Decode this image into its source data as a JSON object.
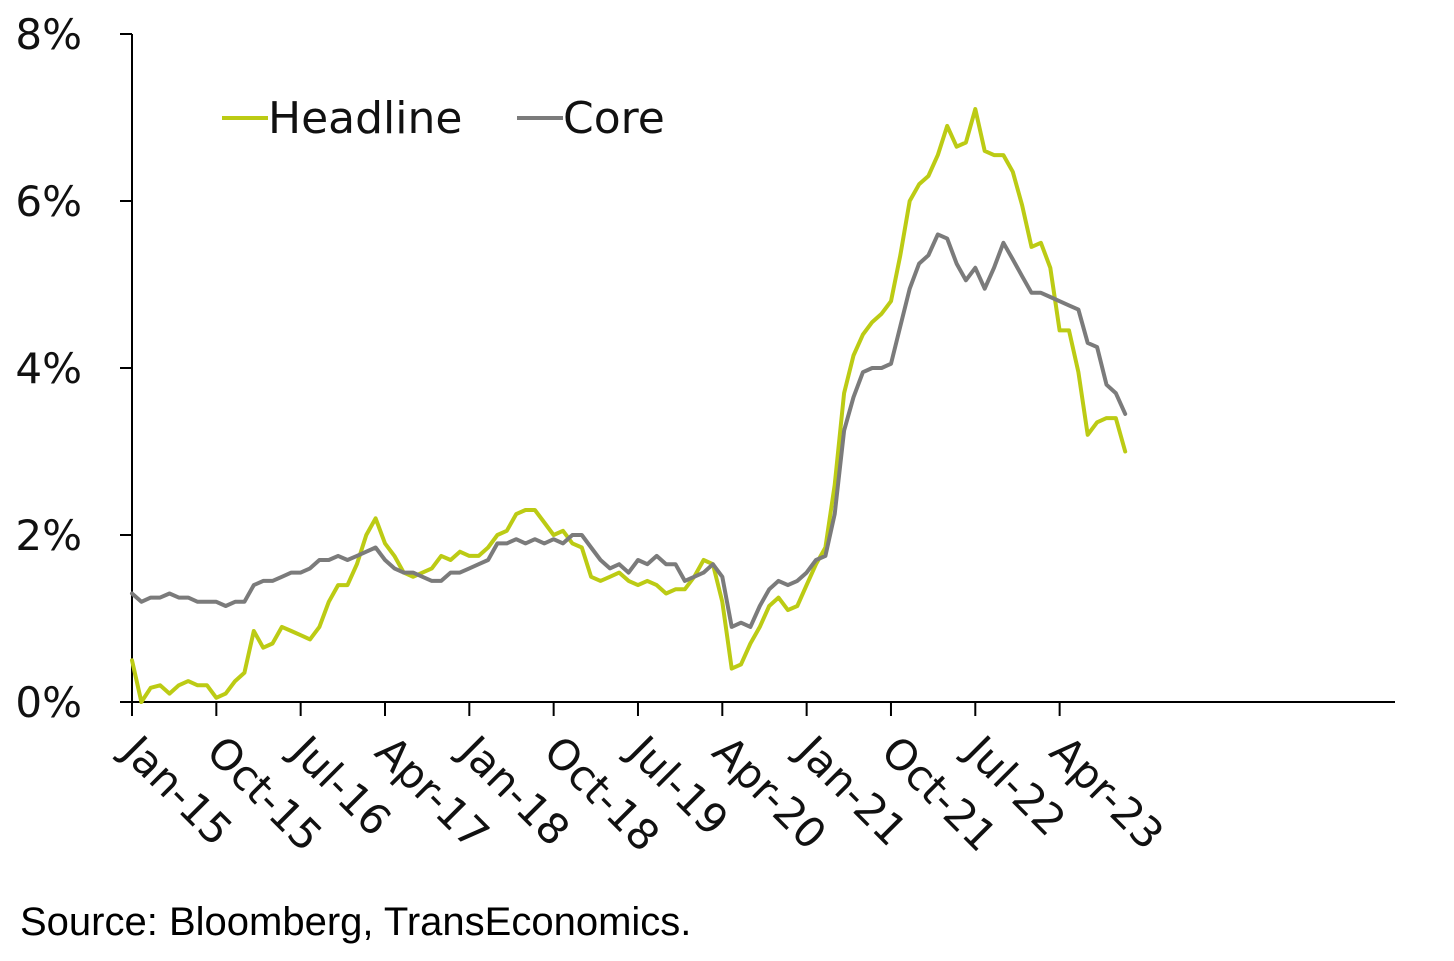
{
  "source_note": "Source: Bloomberg, TransEconomics.",
  "colors": {
    "headline": "#bccb14",
    "core": "#7b7b7b",
    "axis": "#000000"
  },
  "chart_data": {
    "type": "line",
    "title": "",
    "xlabel": "",
    "ylabel": "",
    "x_start": "Jan-15",
    "x_step": "1 month",
    "ylim": [
      0,
      8
    ],
    "y_ticks": [
      0,
      2,
      4,
      6,
      8
    ],
    "y_tick_labels": [
      "0%",
      "2%",
      "4%",
      "6%",
      "8%"
    ],
    "x_tick_labels": [
      "Jan-15",
      "Oct-15",
      "Jul-16",
      "Apr-17",
      "Jan-18",
      "Oct-18",
      "Jul-19",
      "Apr-20",
      "Jan-21",
      "Oct-21",
      "Jul-22",
      "Apr-23"
    ],
    "legend_position": "top-left",
    "grid": false,
    "series": [
      {
        "name": "Headline",
        "values": [
          0.5,
          0.0,
          0.17,
          0.2,
          0.1,
          0.2,
          0.25,
          0.2,
          0.2,
          0.05,
          0.1,
          0.25,
          0.35,
          0.85,
          0.65,
          0.7,
          0.9,
          0.85,
          0.8,
          0.75,
          0.9,
          1.2,
          1.4,
          1.4,
          1.65,
          2.0,
          2.2,
          1.9,
          1.75,
          1.55,
          1.5,
          1.55,
          1.6,
          1.75,
          1.7,
          1.8,
          1.75,
          1.75,
          1.85,
          2.0,
          2.05,
          2.25,
          2.3,
          2.3,
          2.15,
          2.0,
          2.05,
          1.9,
          1.85,
          1.5,
          1.45,
          1.5,
          1.55,
          1.45,
          1.4,
          1.45,
          1.4,
          1.3,
          1.35,
          1.35,
          1.5,
          1.7,
          1.65,
          1.2,
          0.4,
          0.45,
          0.7,
          0.9,
          1.15,
          1.25,
          1.1,
          1.15,
          1.4,
          1.65,
          1.85,
          2.6,
          3.7,
          4.15,
          4.4,
          4.55,
          4.65,
          4.8,
          5.35,
          6.0,
          6.2,
          6.3,
          6.55,
          6.9,
          6.65,
          6.7,
          7.1,
          6.6,
          6.55,
          6.55,
          6.35,
          5.95,
          5.45,
          5.5,
          5.2,
          4.45,
          4.45,
          3.95,
          3.2,
          3.35,
          3.4,
          3.4,
          3.0
        ]
      },
      {
        "name": "Core",
        "values": [
          1.3,
          1.2,
          1.25,
          1.25,
          1.3,
          1.25,
          1.25,
          1.2,
          1.2,
          1.2,
          1.15,
          1.2,
          1.2,
          1.4,
          1.45,
          1.45,
          1.5,
          1.55,
          1.55,
          1.6,
          1.7,
          1.7,
          1.75,
          1.7,
          1.75,
          1.8,
          1.85,
          1.7,
          1.6,
          1.55,
          1.55,
          1.5,
          1.45,
          1.45,
          1.55,
          1.55,
          1.6,
          1.65,
          1.7,
          1.9,
          1.9,
          1.95,
          1.9,
          1.95,
          1.9,
          1.95,
          1.9,
          2.0,
          2.0,
          1.85,
          1.7,
          1.6,
          1.65,
          1.55,
          1.7,
          1.65,
          1.75,
          1.65,
          1.65,
          1.45,
          1.5,
          1.55,
          1.65,
          1.5,
          0.9,
          0.95,
          0.9,
          1.15,
          1.35,
          1.45,
          1.4,
          1.45,
          1.55,
          1.7,
          1.75,
          2.25,
          3.25,
          3.65,
          3.95,
          4.0,
          4.0,
          4.05,
          4.5,
          4.95,
          5.25,
          5.35,
          5.6,
          5.55,
          5.25,
          5.05,
          5.2,
          4.95,
          5.2,
          5.5,
          5.3,
          5.1,
          4.9,
          4.9,
          4.85,
          4.8,
          4.75,
          4.7,
          4.3,
          4.25,
          3.8,
          3.7,
          3.45
        ]
      }
    ]
  }
}
